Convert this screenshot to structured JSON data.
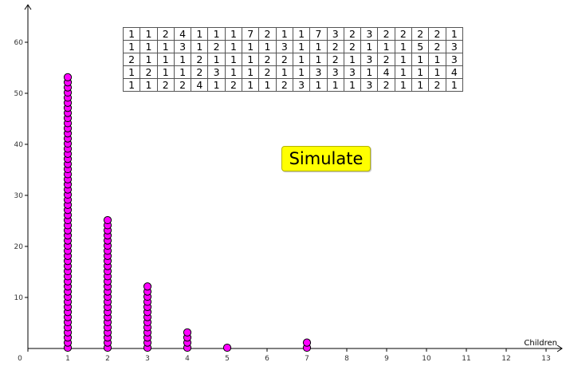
{
  "results_table": {
    "rows": [
      [
        "1",
        "1",
        "2",
        "4",
        "1",
        "1",
        "1",
        "7",
        "2",
        "1",
        "1",
        "7",
        "3",
        "2",
        "3",
        "2",
        "2",
        "2",
        "2",
        "1"
      ],
      [
        "1",
        "1",
        "1",
        "3",
        "1",
        "2",
        "1",
        "1",
        "1",
        "3",
        "1",
        "1",
        "2",
        "2",
        "1",
        "1",
        "1",
        "5",
        "2",
        "3"
      ],
      [
        "2",
        "1",
        "1",
        "1",
        "2",
        "1",
        "1",
        "1",
        "2",
        "2",
        "1",
        "1",
        "2",
        "1",
        "3",
        "2",
        "1",
        "1",
        "1",
        "3"
      ],
      [
        "1",
        "2",
        "1",
        "1",
        "2",
        "3",
        "1",
        "1",
        "2",
        "1",
        "1",
        "3",
        "3",
        "3",
        "1",
        "4",
        "1",
        "1",
        "1",
        "4"
      ],
      [
        "1",
        "1",
        "2",
        "2",
        "4",
        "1",
        "2",
        "1",
        "1",
        "2",
        "3",
        "1",
        "1",
        "1",
        "3",
        "2",
        "1",
        "1",
        "2",
        "1"
      ]
    ]
  },
  "simulate_button": {
    "label": "Simulate"
  },
  "chart_data": {
    "type": "scatter",
    "subtype": "dot-plot",
    "xlabel": "Children",
    "ylabel": "",
    "xlim": [
      0,
      13
    ],
    "ylim": [
      0,
      65
    ],
    "x_ticks": [
      0,
      1,
      2,
      3,
      4,
      5,
      6,
      7,
      8,
      9,
      10,
      11,
      12,
      13
    ],
    "y_ticks": [
      10,
      20,
      30,
      40,
      50,
      60
    ],
    "grid": false,
    "marker_color": "#ff00ff",
    "marker_edge": "#000000",
    "dot_counts": [
      {
        "x": 1,
        "count": 54
      },
      {
        "x": 2,
        "count": 26
      },
      {
        "x": 3,
        "count": 13
      },
      {
        "x": 4,
        "count": 4
      },
      {
        "x": 5,
        "count": 1
      },
      {
        "x": 7,
        "count": 2
      }
    ]
  }
}
